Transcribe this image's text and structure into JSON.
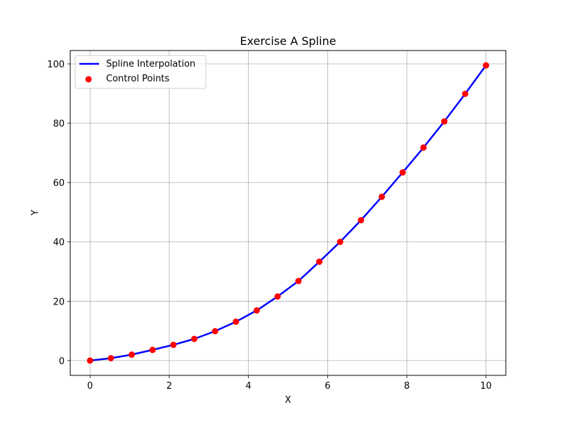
{
  "chart_data": {
    "type": "line",
    "title": "Exercise A Spline",
    "xlabel": "X",
    "ylabel": "Y",
    "xlim": [
      -0.5,
      10.5
    ],
    "ylim": [
      -5,
      104.5
    ],
    "xticks": [
      0,
      2,
      4,
      6,
      8,
      10
    ],
    "yticks": [
      0,
      20,
      40,
      60,
      80,
      100
    ],
    "xtick_labels": [
      "0",
      "2",
      "4",
      "6",
      "8",
      "10"
    ],
    "ytick_labels": [
      "0",
      "20",
      "40",
      "60",
      "80",
      "100"
    ],
    "grid": true,
    "legend_position": "upper-left",
    "series": [
      {
        "name": "Spline Interpolation",
        "kind": "line",
        "color": "#0000ff",
        "x": [
          0,
          0.5263,
          1.0526,
          1.5789,
          2.1053,
          2.6316,
          3.1579,
          3.6842,
          4.2105,
          4.7368,
          5.2632,
          5.7895,
          6.3158,
          6.8421,
          7.3684,
          7.8947,
          8.4211,
          8.9474,
          9.4737,
          10
        ],
        "y": [
          0,
          0.8,
          2.0,
          3.6,
          5.3,
          7.3,
          9.9,
          13.1,
          16.9,
          21.6,
          26.8,
          33.3,
          40.0,
          47.3,
          55.2,
          63.4,
          71.8,
          80.6,
          89.9,
          99.5
        ]
      },
      {
        "name": "Control Points",
        "kind": "scatter",
        "color": "#ff0000",
        "x": [
          0,
          0.5263,
          1.0526,
          1.5789,
          2.1053,
          2.6316,
          3.1579,
          3.6842,
          4.2105,
          4.7368,
          5.2632,
          5.7895,
          6.3158,
          6.8421,
          7.3684,
          7.8947,
          8.4211,
          8.9474,
          9.4737,
          10
        ],
        "y": [
          0,
          0.8,
          2.0,
          3.6,
          5.3,
          7.3,
          9.9,
          13.1,
          16.9,
          21.6,
          26.8,
          33.3,
          40.0,
          47.3,
          55.2,
          63.4,
          71.8,
          80.6,
          89.9,
          99.5
        ]
      }
    ]
  }
}
